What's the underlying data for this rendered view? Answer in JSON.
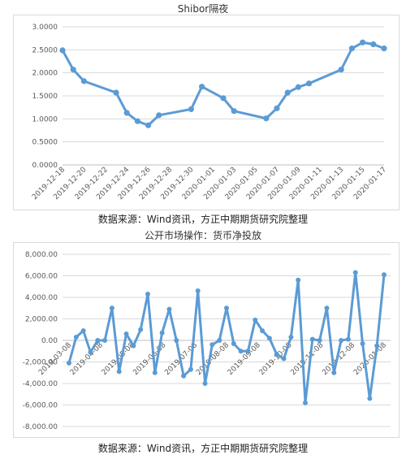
{
  "chart_data": [
    {
      "type": "line",
      "title": "Shibor隔夜",
      "xlabel": "",
      "ylabel": "",
      "ylim": [
        0,
        3
      ],
      "yticks": [
        "0.0000",
        "0.5000",
        "1.0000",
        "1.5000",
        "2.0000",
        "2.5000",
        "3.0000"
      ],
      "xticks": [
        "2019-12-18",
        "2019-12-20",
        "2019-12-22",
        "2019-12-24",
        "2019-12-26",
        "2019-12-28",
        "2019-12-30",
        "2020-01-01",
        "2020-01-03",
        "2020-01-05",
        "2020-01-07",
        "2020-01-09",
        "2020-01-11",
        "2020-01-13",
        "2020-01-15",
        "2020-01-17"
      ],
      "x": [
        "2019-12-18",
        "2019-12-19",
        "2019-12-20",
        "2019-12-23",
        "2019-12-24",
        "2019-12-25",
        "2019-12-26",
        "2019-12-27",
        "2019-12-30",
        "2019-12-31",
        "2020-01-02",
        "2020-01-03",
        "2020-01-06",
        "2020-01-07",
        "2020-01-08",
        "2020-01-09",
        "2020-01-10",
        "2020-01-13",
        "2020-01-14",
        "2020-01-15",
        "2020-01-16",
        "2020-01-17"
      ],
      "series": [
        {
          "values": [
            2.49,
            2.07,
            1.82,
            1.57,
            1.13,
            0.95,
            0.86,
            1.08,
            1.21,
            1.7,
            1.45,
            1.17,
            1.01,
            1.23,
            1.57,
            1.69,
            1.77,
            2.07,
            2.53,
            2.66,
            2.62,
            2.53
          ]
        }
      ],
      "source": "数据来源：Wind资讯，方正中期期货研究院整理",
      "color": "#5b9bd5",
      "grid": true
    },
    {
      "type": "line",
      "title": "公开市场操作：货币净投放",
      "xlabel": "",
      "ylabel": "",
      "ylim": [
        -8000,
        8000
      ],
      "yticks": [
        "-8,000.00",
        "-6,000.00",
        "-4,000.00",
        "-2,000.00",
        "0.00",
        "2,000.00",
        "4,000.00",
        "6,000.00",
        "8,000.00"
      ],
      "xticks": [
        "2019-03-08",
        "2019-04-08",
        "2019-05-08",
        "2019-06-08",
        "2019-07-08",
        "2019-08-08",
        "2019-09-08",
        "2019-10-08",
        "2019-11-08",
        "2019-12-08",
        "2020-01-08"
      ],
      "series": [
        {
          "values": [
            -2100,
            300,
            900,
            -1100,
            0,
            0,
            3000,
            -2900,
            600,
            -500,
            1000,
            4300,
            -3000,
            700,
            2900,
            0,
            -3300,
            -2700,
            4600,
            -4000,
            -400,
            0,
            3000,
            -300,
            -1000,
            -1000,
            1900,
            900,
            200,
            -1300,
            -1700,
            300,
            5600,
            -5800,
            100,
            0,
            3000,
            -3000,
            0,
            100,
            6300,
            -300,
            -5400,
            -500,
            6100
          ]
        }
      ],
      "source": "数据来源：Wind资讯，方正中期期货研究院整理",
      "color": "#5b9bd5",
      "grid": true
    }
  ]
}
